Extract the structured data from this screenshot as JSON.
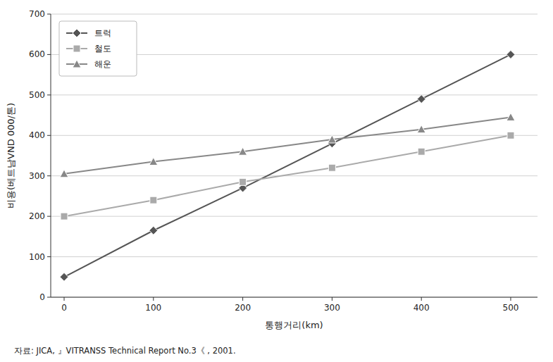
{
  "chart_data": {
    "type": "line",
    "x": [
      0,
      100,
      200,
      300,
      400,
      500
    ],
    "series": [
      {
        "name": "트럭",
        "color": "#555555",
        "marker": "diamond",
        "values": [
          50,
          165,
          270,
          380,
          490,
          600
        ]
      },
      {
        "name": "철도",
        "color": "#aaaaaa",
        "marker": "square",
        "values": [
          200,
          240,
          285,
          320,
          360,
          400
        ]
      },
      {
        "name": "해운",
        "color": "#888888",
        "marker": "triangle",
        "values": [
          305,
          335,
          360,
          390,
          415,
          445
        ]
      }
    ],
    "xlabel": "통행거리(km)",
    "ylabel": "비용(베트남VND 000/톤)",
    "xlim": [
      -15,
      530
    ],
    "ylim": [
      0,
      700
    ],
    "xticks": [
      0,
      100,
      200,
      300,
      400,
      500
    ],
    "yticks": [
      0,
      100,
      200,
      300,
      400,
      500,
      600,
      700
    ],
    "grid": "y",
    "legend": "upper left",
    "annotations": [
      "자료:  JICA,   』VITRANSS Technical Report No.3《 ,  2001."
    ]
  }
}
